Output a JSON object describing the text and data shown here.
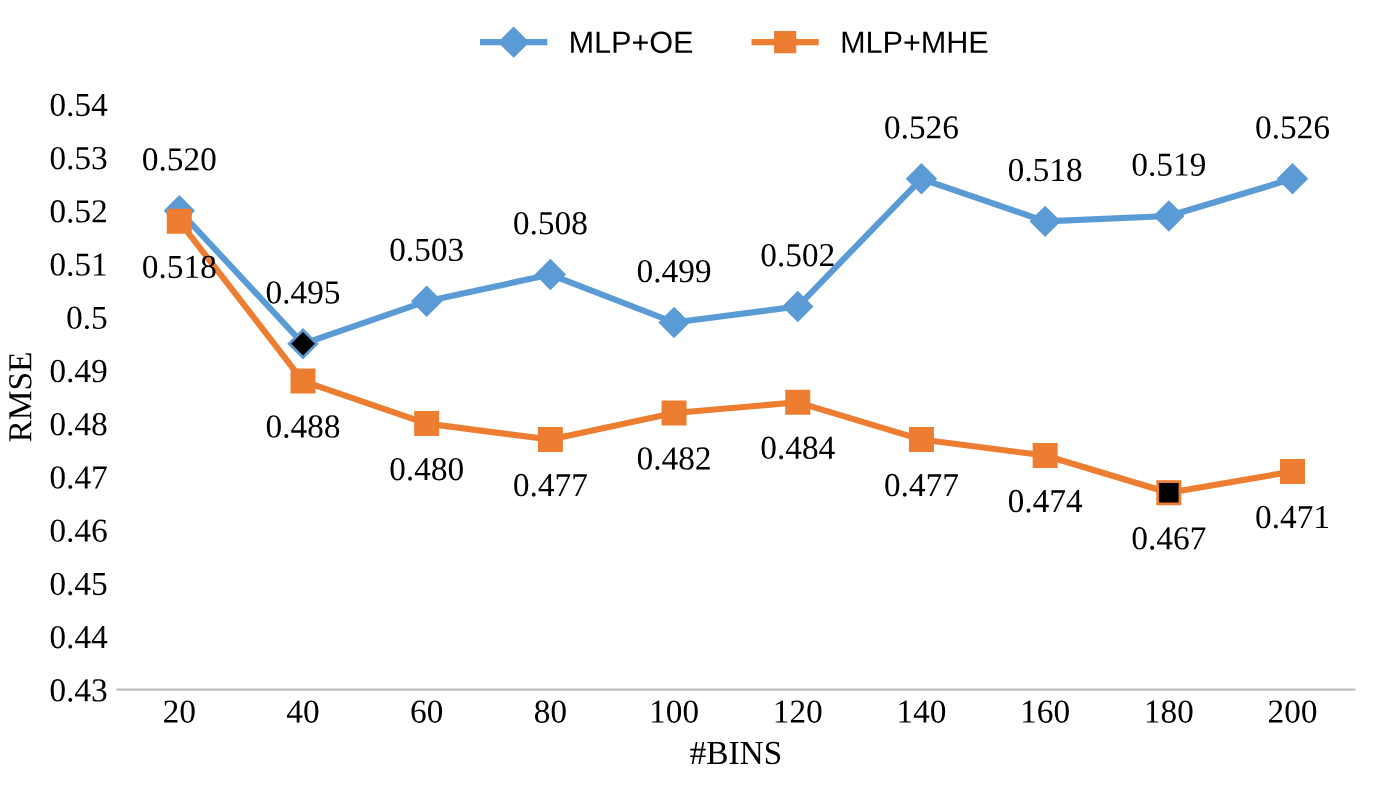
{
  "chart_data": {
    "type": "line",
    "xlabel": "#BINS",
    "ylabel": "RMSE",
    "categories": [
      "20",
      "40",
      "60",
      "80",
      "100",
      "120",
      "140",
      "160",
      "180",
      "200"
    ],
    "series": [
      {
        "name": "MLP+OE",
        "color": "#5b9bd5",
        "marker": "diamond",
        "values": [
          0.52,
          0.495,
          0.503,
          0.508,
          0.499,
          0.502,
          0.526,
          0.518,
          0.519,
          0.526
        ],
        "colors": [
          "#5b9bd5",
          "#000000",
          "#5b9bd5",
          "#5b9bd5",
          "#5b9bd5",
          "#5b9bd5",
          "#5b9bd5",
          "#5b9bd5",
          "#5b9bd5",
          "#5b9bd5"
        ],
        "value_labels": [
          "0.520",
          "0.495",
          "0.503",
          "0.508",
          "0.499",
          "0.502",
          "0.526",
          "0.518",
          "0.519",
          "0.526"
        ]
      },
      {
        "name": "MLP+MHE",
        "color": "#ed7d31",
        "marker": "square",
        "values": [
          0.518,
          0.488,
          0.48,
          0.477,
          0.482,
          0.484,
          0.477,
          0.474,
          0.467,
          0.471
        ],
        "colors": [
          "#ed7d31",
          "#ed7d31",
          "#ed7d31",
          "#ed7d31",
          "#ed7d31",
          "#ed7d31",
          "#ed7d31",
          "#ed7d31",
          "#000000",
          "#ed7d31"
        ],
        "value_labels": [
          "0.518",
          "0.488",
          "0.480",
          "0.477",
          "0.482",
          "0.484",
          "0.477",
          "0.474",
          "0.467",
          "0.471"
        ]
      }
    ],
    "ylim": [
      0.43,
      0.54
    ],
    "yticks": [
      0.43,
      0.44,
      0.45,
      0.46,
      0.47,
      0.48,
      0.49,
      0.5,
      0.51,
      0.52,
      0.53,
      0.54
    ],
    "grid": false,
    "legend": "top",
    "line_style": "solid"
  }
}
